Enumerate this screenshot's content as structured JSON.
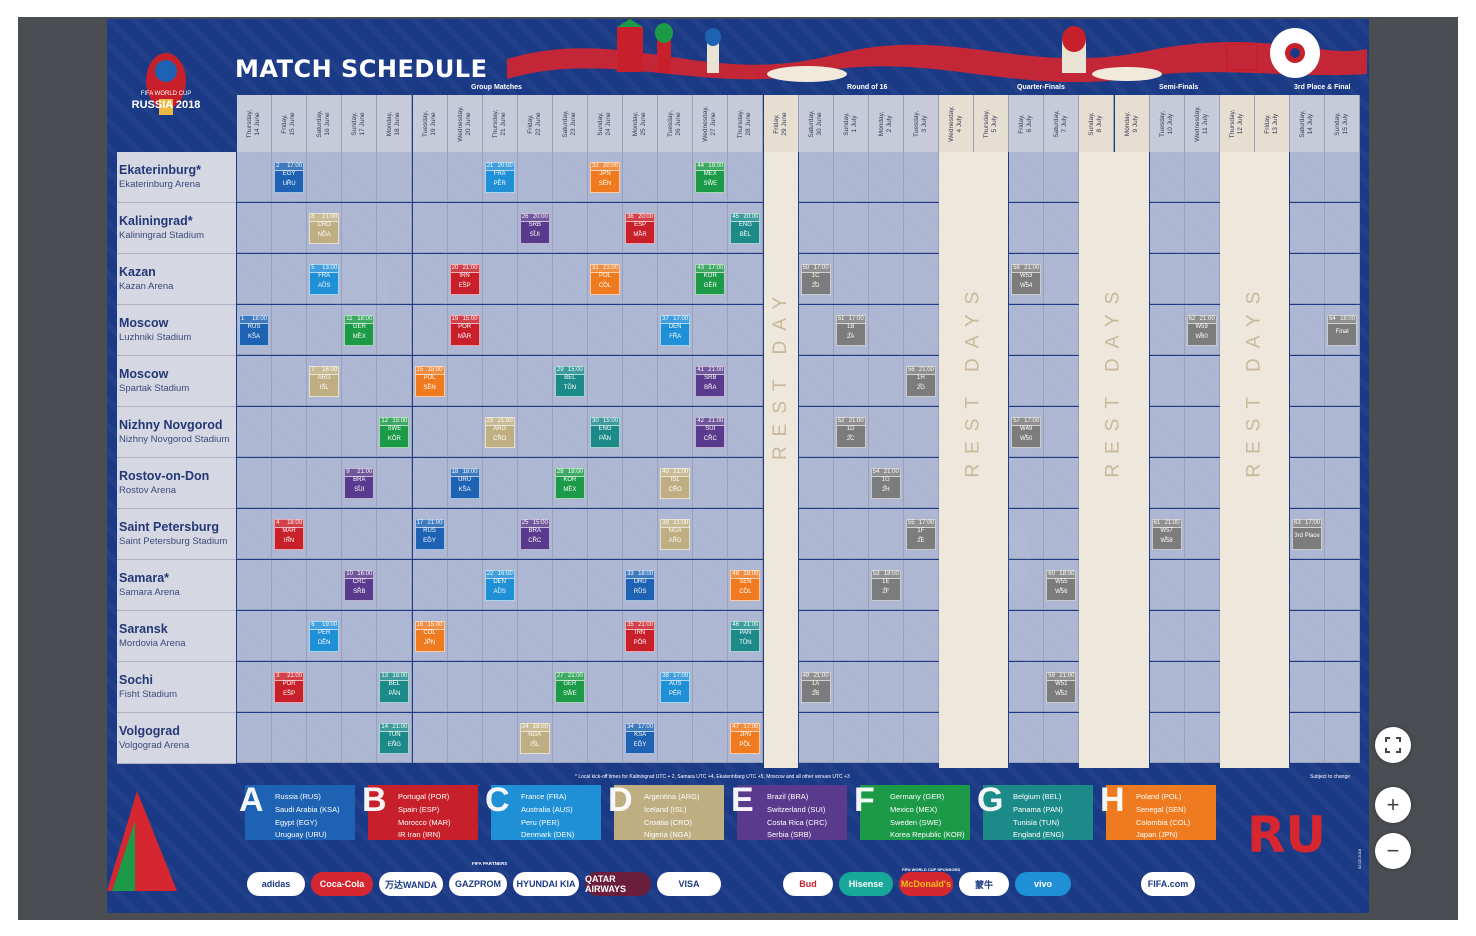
{
  "title": "MATCH SCHEDULE",
  "logo": {
    "line1": "FIFA WORLD CUP",
    "line2": "RUSSIA 2018"
  },
  "stages": [
    {
      "label": "Group Matches"
    },
    {
      "label": "Round of 16"
    },
    {
      "label": "Quarter-Finals"
    },
    {
      "label": "Semi-Finals"
    },
    {
      "label": "3rd Place & Final"
    }
  ],
  "days": [
    "Thursday,\n14 June",
    "Friday,\n15 June",
    "Saturday,\n16 June",
    "Sunday,\n17 June",
    "Monday,\n18 June",
    "Tuesday,\n19 June",
    "Wednesday,\n20 June",
    "Thursday,\n21 June",
    "Friday,\n22 June",
    "Saturday,\n23 June",
    "Sunday,\n24 June",
    "Monday,\n25 June",
    "Tuesday,\n26 June",
    "Wednesday,\n27 June",
    "Thursday,\n28 June",
    "Friday,\n29 June",
    "Saturday,\n30 June",
    "Sunday,\n1 July",
    "Monday,\n2 July",
    "Tuesday,\n3 July",
    "Wednesday,\n4 July",
    "Thursday,\n5 July",
    "Friday,\n6 July",
    "Saturday,\n7 July",
    "Sunday,\n8 July",
    "Monday,\n9 July",
    "Tuesday,\n10 July",
    "Wednesday,\n11 July",
    "Thursday,\n12 July",
    "Friday,\n13 July",
    "Saturday,\n14 July",
    "Sunday,\n15 July"
  ],
  "venues": [
    {
      "city": "Ekaterinburg*",
      "stadium": "Ekaterinburg Arena"
    },
    {
      "city": "Kaliningrad*",
      "stadium": "Kaliningrad Stadium"
    },
    {
      "city": "Kazan",
      "stadium": "Kazan Arena"
    },
    {
      "city": "Moscow",
      "stadium": "Luzhniki Stadium"
    },
    {
      "city": "Moscow",
      "stadium": "Spartak Stadium"
    },
    {
      "city": "Nizhny Novgorod",
      "stadium": "Nizhny Novgorod Stadium"
    },
    {
      "city": "Rostov-on-Don",
      "stadium": "Rostov Arena"
    },
    {
      "city": "Saint Petersburg",
      "stadium": "Saint Petersburg Stadium"
    },
    {
      "city": "Samara*",
      "stadium": "Samara Arena"
    },
    {
      "city": "Saransk",
      "stadium": "Mordovia Arena"
    },
    {
      "city": "Sochi",
      "stadium": "Fisht Stadium"
    },
    {
      "city": "Volgograd",
      "stadium": "Volgograd Arena"
    }
  ],
  "rest_labels": [
    "REST DAY",
    "REST DAYS",
    "REST DAYS",
    "REST DAYS"
  ],
  "colors": {
    "A": "#1e63b3",
    "B": "#c8202a",
    "C": "#1f8fd6",
    "D": "#bfae82",
    "E": "#5a3a8c",
    "F": "#1c9a48",
    "G": "#1d8a8a",
    "H": "#ef7a1f",
    "KO": "#7c7c7c"
  },
  "matches": [
    {
      "n": "1",
      "t": "18:00",
      "a": "RUS",
      "b": "KSA",
      "v": 3,
      "d": 0,
      "g": "A"
    },
    {
      "n": "2",
      "t": "17:00",
      "a": "EGY",
      "b": "URU",
      "v": 0,
      "d": 1,
      "g": "A"
    },
    {
      "n": "3",
      "t": "21:00",
      "a": "POR",
      "b": "ESP",
      "v": 10,
      "d": 1,
      "g": "B"
    },
    {
      "n": "4",
      "t": "18:00",
      "a": "MAR",
      "b": "IRN",
      "v": 7,
      "d": 1,
      "g": "B"
    },
    {
      "n": "5",
      "t": "13:00",
      "a": "FRA",
      "b": "AUS",
      "v": 2,
      "d": 2,
      "g": "C"
    },
    {
      "n": "6",
      "t": "19:00",
      "a": "PER",
      "b": "DEN",
      "v": 9,
      "d": 2,
      "g": "C"
    },
    {
      "n": "7",
      "t": "16:00",
      "a": "ARG",
      "b": "ISL",
      "v": 4,
      "d": 2,
      "g": "D"
    },
    {
      "n": "8",
      "t": "21:00",
      "a": "CRO",
      "b": "NGA",
      "v": 1,
      "d": 2,
      "g": "D"
    },
    {
      "n": "9",
      "t": "21:00",
      "a": "BRA",
      "b": "SUI",
      "v": 6,
      "d": 3,
      "g": "E"
    },
    {
      "n": "10",
      "t": "16:00",
      "a": "CRC",
      "b": "SRB",
      "v": 8,
      "d": 3,
      "g": "E"
    },
    {
      "n": "11",
      "t": "18:00",
      "a": "GER",
      "b": "MEX",
      "v": 3,
      "d": 3,
      "g": "F"
    },
    {
      "n": "12",
      "t": "15:00",
      "a": "SWE",
      "b": "KOR",
      "v": 5,
      "d": 4,
      "g": "F"
    },
    {
      "n": "13",
      "t": "18:00",
      "a": "BEL",
      "b": "PAN",
      "v": 10,
      "d": 4,
      "g": "G"
    },
    {
      "n": "14",
      "t": "21:00",
      "a": "TUN",
      "b": "ENG",
      "v": 11,
      "d": 4,
      "g": "G"
    },
    {
      "n": "15",
      "t": "18:00",
      "a": "POL",
      "b": "SEN",
      "v": 4,
      "d": 5,
      "g": "H"
    },
    {
      "n": "16",
      "t": "15:00",
      "a": "COL",
      "b": "JPN",
      "v": 9,
      "d": 5,
      "g": "H"
    },
    {
      "n": "17",
      "t": "21:00",
      "a": "RUS",
      "b": "EGY",
      "v": 7,
      "d": 5,
      "g": "A"
    },
    {
      "n": "18",
      "t": "18:00",
      "a": "URU",
      "b": "KSA",
      "v": 6,
      "d": 6,
      "g": "A"
    },
    {
      "n": "19",
      "t": "15:00",
      "a": "POR",
      "b": "MAR",
      "v": 3,
      "d": 6,
      "g": "B"
    },
    {
      "n": "20",
      "t": "21:00",
      "a": "IRN",
      "b": "ESP",
      "v": 2,
      "d": 6,
      "g": "B"
    },
    {
      "n": "21",
      "t": "20:00",
      "a": "FRA",
      "b": "PER",
      "v": 0,
      "d": 7,
      "g": "C"
    },
    {
      "n": "22",
      "t": "16:00",
      "a": "DEN",
      "b": "AUS",
      "v": 8,
      "d": 7,
      "g": "C"
    },
    {
      "n": "23",
      "t": "21:00",
      "a": "ARG",
      "b": "CRO",
      "v": 5,
      "d": 7,
      "g": "D"
    },
    {
      "n": "24",
      "t": "18:00",
      "a": "NGA",
      "b": "ISL",
      "v": 11,
      "d": 8,
      "g": "D"
    },
    {
      "n": "25",
      "t": "15:00",
      "a": "BRA",
      "b": "CRC",
      "v": 7,
      "d": 8,
      "g": "E"
    },
    {
      "n": "26",
      "t": "20:00",
      "a": "SRB",
      "b": "SUI",
      "v": 1,
      "d": 8,
      "g": "E"
    },
    {
      "n": "27",
      "t": "21:00",
      "a": "GER",
      "b": "SWE",
      "v": 10,
      "d": 9,
      "g": "F"
    },
    {
      "n": "28",
      "t": "18:00",
      "a": "KOR",
      "b": "MEX",
      "v": 6,
      "d": 9,
      "g": "F"
    },
    {
      "n": "29",
      "t": "15:00",
      "a": "BEL",
      "b": "TUN",
      "v": 4,
      "d": 9,
      "g": "G"
    },
    {
      "n": "30",
      "t": "15:00",
      "a": "ENG",
      "b": "PAN",
      "v": 5,
      "d": 10,
      "g": "G"
    },
    {
      "n": "31",
      "t": "21:00",
      "a": "POL",
      "b": "COL",
      "v": 2,
      "d": 10,
      "g": "H"
    },
    {
      "n": "32",
      "t": "20:00",
      "a": "JPN",
      "b": "SEN",
      "v": 0,
      "d": 10,
      "g": "H"
    },
    {
      "n": "33",
      "t": "18:00",
      "a": "URU",
      "b": "RUS",
      "v": 8,
      "d": 11,
      "g": "A"
    },
    {
      "n": "34",
      "t": "17:00",
      "a": "KSA",
      "b": "EGY",
      "v": 11,
      "d": 11,
      "g": "A"
    },
    {
      "n": "35",
      "t": "21:00",
      "a": "IRN",
      "b": "POR",
      "v": 9,
      "d": 11,
      "g": "B"
    },
    {
      "n": "36",
      "t": "20:00",
      "a": "ESP",
      "b": "MAR",
      "v": 1,
      "d": 11,
      "g": "B"
    },
    {
      "n": "37",
      "t": "17:00",
      "a": "DEN",
      "b": "FRA",
      "v": 3,
      "d": 12,
      "g": "C"
    },
    {
      "n": "38",
      "t": "17:00",
      "a": "AUS",
      "b": "PER",
      "v": 10,
      "d": 12,
      "g": "C"
    },
    {
      "n": "39",
      "t": "21:00",
      "a": "NGA",
      "b": "ARG",
      "v": 7,
      "d": 12,
      "g": "D"
    },
    {
      "n": "40",
      "t": "21:00",
      "a": "ISL",
      "b": "CRO",
      "v": 6,
      "d": 12,
      "g": "D"
    },
    {
      "n": "41",
      "t": "21:00",
      "a": "SRB",
      "b": "BRA",
      "v": 4,
      "d": 13,
      "g": "E"
    },
    {
      "n": "42",
      "t": "21:00",
      "a": "SUI",
      "b": "CRC",
      "v": 5,
      "d": 13,
      "g": "E"
    },
    {
      "n": "43",
      "t": "17:00",
      "a": "KOR",
      "b": "GER",
      "v": 2,
      "d": 13,
      "g": "F"
    },
    {
      "n": "44",
      "t": "19:00",
      "a": "MEX",
      "b": "SWE",
      "v": 0,
      "d": 13,
      "g": "F"
    },
    {
      "n": "45",
      "t": "20:00",
      "a": "ENG",
      "b": "BEL",
      "v": 1,
      "d": 14,
      "g": "G"
    },
    {
      "n": "46",
      "t": "21:00",
      "a": "PAN",
      "b": "TUN",
      "v": 9,
      "d": 14,
      "g": "G"
    },
    {
      "n": "47",
      "t": "17:00",
      "a": "JPN",
      "b": "POL",
      "v": 11,
      "d": 14,
      "g": "H"
    },
    {
      "n": "48",
      "t": "18:00",
      "a": "SEN",
      "b": "COL",
      "v": 8,
      "d": 14,
      "g": "H"
    },
    {
      "n": "49",
      "t": "21:00",
      "a": "1A",
      "b": "2B",
      "v": 10,
      "d": 16,
      "g": "KO"
    },
    {
      "n": "50",
      "t": "17:00",
      "a": "1C",
      "b": "2D",
      "v": 2,
      "d": 16,
      "g": "KO"
    },
    {
      "n": "51",
      "t": "17:00",
      "a": "1B",
      "b": "2A",
      "v": 3,
      "d": 17,
      "g": "KO"
    },
    {
      "n": "52",
      "t": "21:00",
      "a": "1D",
      "b": "2C",
      "v": 5,
      "d": 17,
      "g": "KO"
    },
    {
      "n": "53",
      "t": "18:00",
      "a": "1E",
      "b": "2F",
      "v": 8,
      "d": 18,
      "g": "KO"
    },
    {
      "n": "54",
      "t": "21:00",
      "a": "1G",
      "b": "2H",
      "v": 6,
      "d": 18,
      "g": "KO"
    },
    {
      "n": "55",
      "t": "17:00",
      "a": "1F",
      "b": "2E",
      "v": 7,
      "d": 19,
      "g": "KO"
    },
    {
      "n": "56",
      "t": "21:00",
      "a": "1H",
      "b": "2G",
      "v": 4,
      "d": 19,
      "g": "KO"
    },
    {
      "n": "57",
      "t": "17:00",
      "a": "W49",
      "b": "W50",
      "v": 5,
      "d": 22,
      "g": "KO"
    },
    {
      "n": "58",
      "t": "21:00",
      "a": "W53",
      "b": "W54",
      "v": 2,
      "d": 22,
      "g": "KO"
    },
    {
      "n": "59",
      "t": "21:00",
      "a": "W51",
      "b": "W52",
      "v": 10,
      "d": 23,
      "g": "KO"
    },
    {
      "n": "60",
      "t": "18:00",
      "a": "W55",
      "b": "W56",
      "v": 8,
      "d": 23,
      "g": "KO"
    },
    {
      "n": "61",
      "t": "21:00",
      "a": "W57",
      "b": "W58",
      "v": 7,
      "d": 26,
      "g": "KO"
    },
    {
      "n": "62",
      "t": "21:00",
      "a": "W59",
      "b": "W60",
      "v": 3,
      "d": 27,
      "g": "KO"
    },
    {
      "n": "63",
      "t": "17:00",
      "a": "3rd Place",
      "b": "",
      "v": 7,
      "d": 30,
      "g": "KO"
    },
    {
      "n": "64",
      "t": "18:00",
      "a": "Final",
      "b": "",
      "v": 3,
      "d": 31,
      "g": "KO"
    }
  ],
  "note": "* Local kick-off times for Kaliningrad UTC + 2, Samara UTC +4, Ekaterinburg UTC +5, Moscow and all other venues UTC +3",
  "subject_to_change": "Subject to change",
  "groups": [
    {
      "letter": "A",
      "teams": [
        "Russia (RUS)",
        "Saudi Arabia (KSA)",
        "Egypt (EGY)",
        "Uruguay (URU)"
      ]
    },
    {
      "letter": "B",
      "teams": [
        "Portugal (POR)",
        "Spain (ESP)",
        "Morocco (MAR)",
        "IR Iran (IRN)"
      ]
    },
    {
      "letter": "C",
      "teams": [
        "France (FRA)",
        "Australia (AUS)",
        "Peru (PER)",
        "Denmark (DEN)"
      ]
    },
    {
      "letter": "D",
      "teams": [
        "Argentina (ARG)",
        "Iceland (ISL)",
        "Croatia (CRO)",
        "Nigeria (NGA)"
      ]
    },
    {
      "letter": "E",
      "teams": [
        "Brazil (BRA)",
        "Switzerland (SUI)",
        "Costa Rica (CRC)",
        "Serbia (SRB)"
      ]
    },
    {
      "letter": "F",
      "teams": [
        "Germany (GER)",
        "Mexico (MEX)",
        "Sweden (SWE)",
        "Korea Republic (KOR)"
      ]
    },
    {
      "letter": "G",
      "teams": [
        "Belgium (BEL)",
        "Panama (PAN)",
        "Tunisia (TUN)",
        "England (ENG)"
      ]
    },
    {
      "letter": "H",
      "teams": [
        "Poland (POL)",
        "Senegal (SEN)",
        "Colombia (COL)",
        "Japan (JPN)"
      ]
    }
  ],
  "partners_label": "FIFA PARTNERS",
  "sponsors_label": "FIFA WORLD CUP SPONSORS",
  "partners": [
    "adidas",
    "Coca-Cola",
    "万达WANDA",
    "GAZPROM",
    "HYUNDAI KIA",
    "QATAR AIRWAYS",
    "VISA"
  ],
  "sponsors": [
    "Bud",
    "Hisense",
    "McDonald's",
    "蒙牛",
    "vivo",
    "FIFA.com"
  ],
  "edition_date": "02.02.2018",
  "controls": {
    "fullscreen": "fullscreen-icon",
    "zoom_in": "+",
    "zoom_out": "−"
  }
}
